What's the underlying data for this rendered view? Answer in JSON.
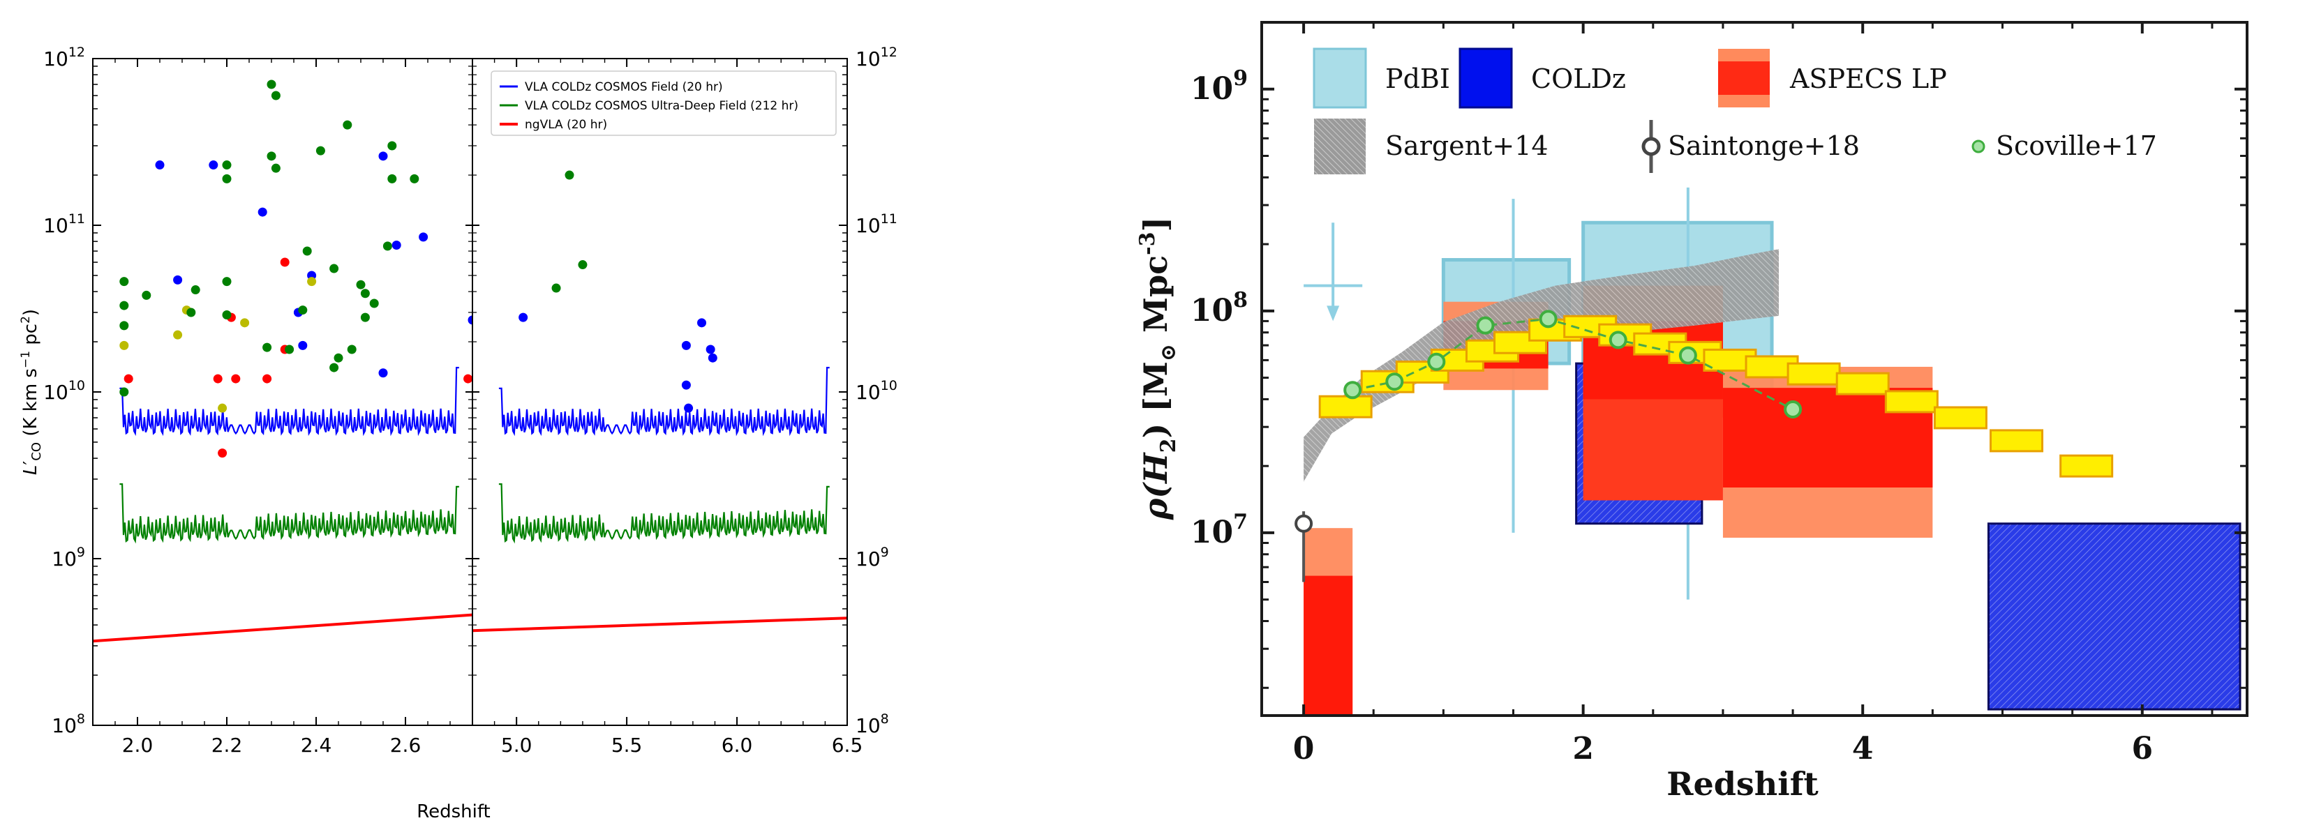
{
  "chart_data": [
    {
      "type": "scatter",
      "title": "",
      "xlabel": "Redshift",
      "ylabel": "L'CO (K km s-1 pc2)",
      "yscale": "log",
      "ylim": [
        100000000.0,
        1000000000000.0
      ],
      "ytick_labels": [
        "10",
        "10",
        "10",
        "10",
        "10"
      ],
      "ytick_exponents": [
        "8",
        "9",
        "10",
        "11",
        "12"
      ],
      "ytick_values": [
        100000000.0,
        1000000000.0,
        10000000000.0,
        100000000000.0,
        1000000000000.0
      ],
      "panels": [
        {
          "name": "low-z",
          "xlim": [
            1.9,
            2.75
          ],
          "xticks": [
            2.0,
            2.2,
            2.4,
            2.6
          ],
          "xtick_labels": [
            "2.0",
            "2.2",
            "2.4",
            "2.6"
          ]
        },
        {
          "name": "high-z",
          "xlim": [
            4.8,
            6.5
          ],
          "xticks": [
            5.0,
            5.5,
            6.0,
            6.5
          ],
          "xtick_labels": [
            "5.0",
            "5.5",
            "6.0",
            "6.5"
          ]
        }
      ],
      "legend": {
        "position": "upper-right",
        "entries": [
          {
            "label": "VLA COLDz COSMOS Field (20 hr)",
            "color": "#0000ff"
          },
          {
            "label": "VLA COLDz COSMOS Ultra-Deep Field (212 hr)",
            "color": "#008000"
          },
          {
            "label": "ngVLA (20 hr)",
            "color": "#ff0000"
          }
        ]
      },
      "series": [
        {
          "name": "VLA COLDz COSMOS Field (20 hr)",
          "color": "#0000ff",
          "kind": "sensitivity-line",
          "base": [
            6000000000.0,
            6000000000.0
          ],
          "edge_start": 10500000000.0,
          "edge_end": 14000000000.0
        },
        {
          "name": "VLA COLDz COSMOS Ultra-Deep Field (212 hr)",
          "color": "#008000",
          "kind": "sensitivity-line",
          "base": [
            1350000000.0,
            1500000000.0
          ],
          "edge_start": 2800000000.0,
          "edge_end": 2700000000.0
        },
        {
          "name": "ngVLA (20 hr)",
          "color": "#ff0000",
          "kind": "sensitivity-line",
          "panel_values": [
            [
              320000000.0,
              460000000.0
            ],
            [
              370000000.0,
              440000000.0
            ]
          ]
        }
      ],
      "points": [
        {
          "x": 1.97,
          "y": 46000000000.0,
          "c": "#008000"
        },
        {
          "x": 1.97,
          "y": 33000000000.0,
          "c": "#008000"
        },
        {
          "x": 1.97,
          "y": 25000000000.0,
          "c": "#008000"
        },
        {
          "x": 1.97,
          "y": 19000000000.0,
          "c": "#bbbb00"
        },
        {
          "x": 1.97,
          "y": 10000000000.0,
          "c": "#008000"
        },
        {
          "x": 1.98,
          "y": 12000000000.0,
          "c": "#ff0000"
        },
        {
          "x": 2.02,
          "y": 38000000000.0,
          "c": "#008000"
        },
        {
          "x": 2.05,
          "y": 230000000000.0,
          "c": "#0000ff"
        },
        {
          "x": 2.09,
          "y": 47000000000.0,
          "c": "#0000ff"
        },
        {
          "x": 2.09,
          "y": 22000000000.0,
          "c": "#bbbb00"
        },
        {
          "x": 2.11,
          "y": 31000000000.0,
          "c": "#bbbb00"
        },
        {
          "x": 2.12,
          "y": 30000000000.0,
          "c": "#008000"
        },
        {
          "x": 2.13,
          "y": 41000000000.0,
          "c": "#008000"
        },
        {
          "x": 2.17,
          "y": 230000000000.0,
          "c": "#0000ff"
        },
        {
          "x": 2.18,
          "y": 12000000000.0,
          "c": "#ff0000"
        },
        {
          "x": 2.19,
          "y": 8000000000.0,
          "c": "#bbbb00"
        },
        {
          "x": 2.19,
          "y": 4300000000.0,
          "c": "#ff0000"
        },
        {
          "x": 2.2,
          "y": 230000000000.0,
          "c": "#008000"
        },
        {
          "x": 2.2,
          "y": 190000000000.0,
          "c": "#008000"
        },
        {
          "x": 2.2,
          "y": 46000000000.0,
          "c": "#008000"
        },
        {
          "x": 2.21,
          "y": 28000000000.0,
          "c": "#ff0000"
        },
        {
          "x": 2.2,
          "y": 29000000000.0,
          "c": "#008000"
        },
        {
          "x": 2.22,
          "y": 12000000000.0,
          "c": "#ff0000"
        },
        {
          "x": 2.24,
          "y": 26000000000.0,
          "c": "#bbbb00"
        },
        {
          "x": 2.28,
          "y": 120000000000.0,
          "c": "#0000ff"
        },
        {
          "x": 2.29,
          "y": 18500000000.0,
          "c": "#008000"
        },
        {
          "x": 2.3,
          "y": 700000000000.0,
          "c": "#008000"
        },
        {
          "x": 2.31,
          "y": 600000000000.0,
          "c": "#008000"
        },
        {
          "x": 2.3,
          "y": 260000000000.0,
          "c": "#008000"
        },
        {
          "x": 2.31,
          "y": 220000000000.0,
          "c": "#008000"
        },
        {
          "x": 2.29,
          "y": 12000000000.0,
          "c": "#ff0000"
        },
        {
          "x": 2.33,
          "y": 60000000000.0,
          "c": "#ff0000"
        },
        {
          "x": 2.33,
          "y": 18000000000.0,
          "c": "#ff0000"
        },
        {
          "x": 2.34,
          "y": 18000000000.0,
          "c": "#008000"
        },
        {
          "x": 2.36,
          "y": 30000000000.0,
          "c": "#0000ff"
        },
        {
          "x": 2.37,
          "y": 31000000000.0,
          "c": "#008000"
        },
        {
          "x": 2.37,
          "y": 19000000000.0,
          "c": "#0000ff"
        },
        {
          "x": 2.38,
          "y": 70000000000.0,
          "c": "#008000"
        },
        {
          "x": 2.39,
          "y": 50000000000.0,
          "c": "#0000ff"
        },
        {
          "x": 2.39,
          "y": 46000000000.0,
          "c": "#bbbb00"
        },
        {
          "x": 2.41,
          "y": 280000000000.0,
          "c": "#008000"
        },
        {
          "x": 2.44,
          "y": 55000000000.0,
          "c": "#008000"
        },
        {
          "x": 2.44,
          "y": 14000000000.0,
          "c": "#008000"
        },
        {
          "x": 2.45,
          "y": 16000000000.0,
          "c": "#008000"
        },
        {
          "x": 2.47,
          "y": 400000000000.0,
          "c": "#008000"
        },
        {
          "x": 2.48,
          "y": 18000000000.0,
          "c": "#008000"
        },
        {
          "x": 2.5,
          "y": 44000000000.0,
          "c": "#008000"
        },
        {
          "x": 2.51,
          "y": 39000000000.0,
          "c": "#008000"
        },
        {
          "x": 2.51,
          "y": 28000000000.0,
          "c": "#008000"
        },
        {
          "x": 2.53,
          "y": 34000000000.0,
          "c": "#008000"
        },
        {
          "x": 2.55,
          "y": 260000000000.0,
          "c": "#0000ff"
        },
        {
          "x": 2.55,
          "y": 13000000000.0,
          "c": "#0000ff"
        },
        {
          "x": 2.56,
          "y": 75000000000.0,
          "c": "#008000"
        },
        {
          "x": 2.57,
          "y": 300000000000.0,
          "c": "#008000"
        },
        {
          "x": 2.57,
          "y": 190000000000.0,
          "c": "#008000"
        },
        {
          "x": 2.58,
          "y": 76000000000.0,
          "c": "#0000ff"
        },
        {
          "x": 2.62,
          "y": 190000000000.0,
          "c": "#008000"
        },
        {
          "x": 2.64,
          "y": 85000000000.0,
          "c": "#0000ff"
        },
        {
          "x": 2.75,
          "y": 27000000000.0,
          "c": "#0000ff"
        },
        {
          "x": 2.74,
          "y": 12000000000.0,
          "c": "#ff0000"
        },
        {
          "x": 5.03,
          "y": 28000000000.0,
          "c": "#0000ff"
        },
        {
          "x": 5.18,
          "y": 42000000000.0,
          "c": "#008000"
        },
        {
          "x": 5.24,
          "y": 200000000000.0,
          "c": "#008000"
        },
        {
          "x": 5.3,
          "y": 58000000000.0,
          "c": "#008000"
        },
        {
          "x": 5.77,
          "y": 19000000000.0,
          "c": "#0000ff"
        },
        {
          "x": 5.77,
          "y": 11000000000.0,
          "c": "#0000ff"
        },
        {
          "x": 5.78,
          "y": 8000000000.0,
          "c": "#0000ff"
        },
        {
          "x": 5.84,
          "y": 26000000000.0,
          "c": "#0000ff"
        },
        {
          "x": 5.88,
          "y": 18000000000.0,
          "c": "#0000ff"
        },
        {
          "x": 5.89,
          "y": 16000000000.0,
          "c": "#0000ff"
        }
      ]
    },
    {
      "type": "area",
      "title": "",
      "xlabel": "Redshift",
      "ylabel": "ρ(H2) [M⊙ Mpc-3]",
      "ylabel_rho": "ρ(H",
      "ylabel_sub": "2",
      "ylabel_rest": ") [M",
      "ylabel_sun": "⊙",
      "ylabel_unit": " Mpc",
      "ylabel_exp": "-3",
      "ylabel_close": "]",
      "yscale": "log",
      "ylim": [
        1500000.0,
        2000000000.0
      ],
      "xlim": [
        -0.3,
        6.75
      ],
      "xticks": [
        0,
        2,
        4,
        6
      ],
      "xtick_labels": [
        "0",
        "2",
        "4",
        "6"
      ],
      "ytick_values": [
        10000000.0,
        100000000.0,
        1000000000.0
      ],
      "ytick_labels": [
        "10",
        "10",
        "10"
      ],
      "ytick_exponents": [
        "7",
        "8",
        "9"
      ],
      "legend": {
        "position": "top",
        "entries": [
          {
            "label": "PdBI",
            "color": "#aadde8"
          },
          {
            "label": "COLDz",
            "color": "#0010ee"
          },
          {
            "label": "ASPECS LP",
            "color": "#ff3a1e"
          },
          {
            "label": "Sargent+14",
            "color": "#808080"
          },
          {
            "label": "Saintonge+18",
            "color": "#444444"
          },
          {
            "label": "Scoville+17",
            "color": "#7fcf7f"
          }
        ]
      },
      "pdbi_boxes": [
        {
          "x0": 1.0,
          "x1": 1.9,
          "y0": 58000000.0,
          "y1": 170000000.0
        },
        {
          "x0": 2.0,
          "x1": 3.35,
          "y0": 34000000.0,
          "y1": 250000000.0
        }
      ],
      "coldz_boxes": [
        {
          "x0": 1.95,
          "x1": 2.85,
          "y0": 11000000.0,
          "y1": 58000000.0
        },
        {
          "x0": 4.9,
          "x1": 6.7,
          "y0": 1600000.0,
          "y1": 11000000.0
        }
      ],
      "aspecs_outer": [
        {
          "x0": 0.0,
          "x1": 0.35,
          "y0": 1500000.0,
          "y1": 10500000.0
        },
        {
          "x0": 1.0,
          "x1": 1.75,
          "y0": 44000000.0,
          "y1": 110000000.0
        },
        {
          "x0": 2.0,
          "x1": 3.0,
          "y0": 33000000.0,
          "y1": 130000000.0
        },
        {
          "x0": 3.0,
          "x1": 4.5,
          "y0": 9500000.0,
          "y1": 56000000.0
        }
      ],
      "aspecs_inner": [
        {
          "x0": 0.0,
          "x1": 0.35,
          "y0": 1500000.0,
          "y1": 6400000.0
        },
        {
          "x0": 1.0,
          "x1": 1.75,
          "y0": 55000000.0,
          "y1": 90000000.0
        },
        {
          "x0": 2.0,
          "x1": 3.0,
          "y0": 40000000.0,
          "y1": 90000000.0
        },
        {
          "x0": 3.0,
          "x1": 4.5,
          "y0": 16000000.0,
          "y1": 45000000.0
        }
      ],
      "aspecs_mid": [
        {
          "x0": 2.0,
          "x1": 3.0,
          "y0": 14000000.0,
          "y1": 60000000.0
        }
      ],
      "sargent_band": {
        "x": [
          0.0,
          0.2,
          0.4,
          0.7,
          1.0,
          1.4,
          1.8,
          2.3,
          2.8,
          3.2,
          3.4
        ],
        "lower": [
          17000000.0,
          28000000.0,
          34000000.0,
          43000000.0,
          55000000.0,
          66000000.0,
          74000000.0,
          80000000.0,
          86000000.0,
          92000000.0,
          95000000.0
        ],
        "upper": [
          27000000.0,
          37000000.0,
          49000000.0,
          65000000.0,
          89000000.0,
          110000000.0,
          130000000.0,
          145000000.0,
          160000000.0,
          180000000.0,
          190000000.0
        ]
      },
      "yellow_boxes": [
        {
          "x": 0.3,
          "y": 37000000.0
        },
        {
          "x": 0.6,
          "y": 48000000.0
        },
        {
          "x": 0.85,
          "y": 53000000.0
        },
        {
          "x": 1.1,
          "y": 60000000.0
        },
        {
          "x": 1.35,
          "y": 66000000.0
        },
        {
          "x": 1.55,
          "y": 72000000.0
        },
        {
          "x": 1.8,
          "y": 82000000.0
        },
        {
          "x": 2.05,
          "y": 85000000.0
        },
        {
          "x": 2.3,
          "y": 78000000.0
        },
        {
          "x": 2.55,
          "y": 71000000.0
        },
        {
          "x": 2.8,
          "y": 65000000.0
        },
        {
          "x": 3.05,
          "y": 60000000.0
        },
        {
          "x": 3.35,
          "y": 56000000.0
        },
        {
          "x": 3.65,
          "y": 52000000.0
        },
        {
          "x": 4.0,
          "y": 47000000.0
        },
        {
          "x": 4.35,
          "y": 39000000.0
        },
        {
          "x": 4.7,
          "y": 33000000.0
        },
        {
          "x": 5.1,
          "y": 26000000.0
        },
        {
          "x": 5.6,
          "y": 20000000.0
        }
      ],
      "scoville_points": [
        {
          "x": 0.35,
          "y": 44000000.0
        },
        {
          "x": 0.65,
          "y": 48000000.0
        },
        {
          "x": 0.95,
          "y": 59000000.0
        },
        {
          "x": 1.3,
          "y": 86000000.0
        },
        {
          "x": 1.75,
          "y": 92000000.0
        },
        {
          "x": 2.25,
          "y": 74000000.0
        },
        {
          "x": 2.75,
          "y": 63000000.0
        },
        {
          "x": 3.5,
          "y": 36000000.0
        }
      ],
      "saintonge_point": {
        "x": 0.0,
        "y": 11000000.0,
        "err_lo": 6000000.0,
        "err_hi": 12500000.0
      },
      "pdbi_errorbars": [
        {
          "x": 1.5,
          "lo": 10000000.0,
          "hi": 320000000.0
        },
        {
          "x": 2.75,
          "lo": 5000000.0,
          "hi": 360000000.0
        }
      ],
      "upper_limit": {
        "x0": 0.0,
        "x1": 0.42,
        "y": 130000000.0,
        "arrow_to": 90000000.0
      }
    }
  ]
}
